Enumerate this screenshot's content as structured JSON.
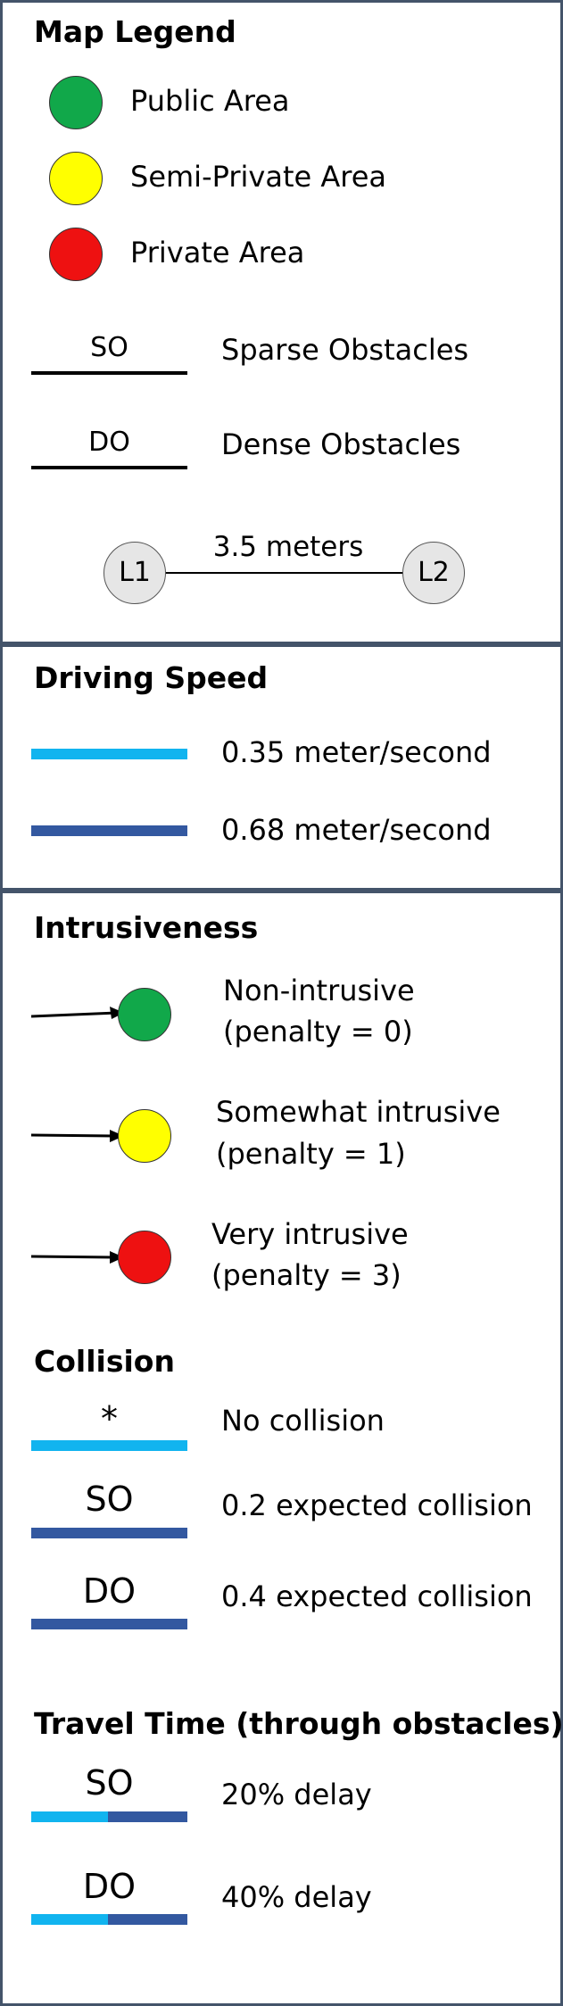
{
  "colors": {
    "public": "#11a84a",
    "semi_private": "#ffff00",
    "private": "#ee1111",
    "speed_slow": "#11b4ef",
    "speed_fast": "#3358a0",
    "border": "#44546a"
  },
  "map_legend": {
    "title": "Map Legend",
    "areas": [
      {
        "label": "Public Area",
        "color_key": "public"
      },
      {
        "label": "Semi-Private Area",
        "color_key": "semi_private"
      },
      {
        "label": "Private Area",
        "color_key": "private"
      }
    ],
    "obstacles": [
      {
        "abbr": "SO",
        "label": "Sparse Obstacles"
      },
      {
        "abbr": "DO",
        "label": "Dense Obstacles"
      }
    ],
    "distance": {
      "from": "L1",
      "to": "L2",
      "label": "3.5 meters"
    }
  },
  "driving_speed": {
    "title": "Driving Speed",
    "items": [
      {
        "label": "0.35 meter/second",
        "color_key": "speed_slow"
      },
      {
        "label": "0.68 meter/second",
        "color_key": "speed_fast"
      }
    ]
  },
  "intrusiveness": {
    "title": "Intrusiveness",
    "items": [
      {
        "line1": "Non-intrusive",
        "line2": "(penalty = 0)",
        "color_key": "public"
      },
      {
        "line1": "Somewhat intrusive",
        "line2": "(penalty = 1)",
        "color_key": "semi_private"
      },
      {
        "line1": "Very intrusive",
        "line2": "(penalty = 3)",
        "color_key": "private"
      }
    ]
  },
  "collision": {
    "title": "Collision",
    "items": [
      {
        "mark": "*",
        "label": "No collision"
      },
      {
        "mark": "SO",
        "label": "0.2 expected collision"
      },
      {
        "mark": "DO",
        "label": "0.4 expected collision"
      }
    ]
  },
  "travel_time": {
    "title": "Travel Time (through obstacles)",
    "items": [
      {
        "mark": "SO",
        "label": "20% delay"
      },
      {
        "mark": "DO",
        "label": "40% delay"
      }
    ]
  }
}
